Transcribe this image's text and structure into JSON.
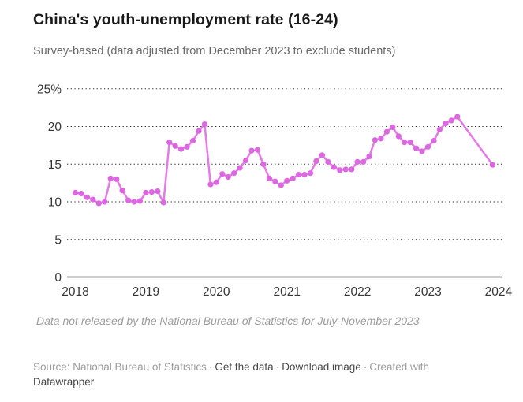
{
  "header": {
    "title": "China's youth-unemployment rate (16-24)",
    "subtitle": "Survey-based (data adjusted from December 2023 to exclude students)"
  },
  "chart_data": {
    "type": "line",
    "title": "China's youth-unemployment rate (16-24)",
    "subtitle": "Survey-based (data adjusted from December 2023 to exclude students)",
    "unit": "percent",
    "x_tick_years": [
      "2018",
      "2019",
      "2020",
      "2021",
      "2022",
      "2023",
      "2024"
    ],
    "y_ticks": [
      0,
      5,
      10,
      15,
      20,
      25
    ],
    "y_top_tick_label": "25%",
    "ylim": [
      0,
      25
    ],
    "grid": "dotted-horizontal",
    "legend": "none",
    "line_color": "#e57ae6",
    "marker_color": "#dd66e2",
    "series": [
      {
        "name": "Youth unemployment rate, ages 16-24 (%)",
        "monthly_values": {
          "2018": [
            11.2,
            11.1,
            10.6,
            10.3,
            9.8,
            10.0,
            13.1,
            13.0,
            11.5,
            10.2,
            10.0,
            10.1
          ],
          "2019": [
            11.2,
            11.3,
            11.4,
            9.9,
            17.9,
            17.4,
            17.0,
            17.3,
            18.1,
            19.4,
            20.3,
            12.3
          ],
          "2020": [
            12.6,
            13.7,
            13.3,
            13.8,
            14.5,
            15.5,
            16.8,
            16.9,
            15.0,
            13.1,
            12.7,
            12.2
          ],
          "2021": [
            12.8,
            13.1,
            13.6,
            13.6,
            13.8,
            15.4,
            16.2,
            15.3,
            14.6,
            14.2,
            14.3,
            14.3
          ],
          "2022": [
            15.3,
            15.3,
            16.0,
            18.2,
            18.4,
            19.3,
            19.9,
            18.7,
            17.9,
            17.9,
            17.1,
            16.7
          ],
          "2023": [
            17.3,
            18.1,
            19.6,
            20.4,
            20.8,
            21.3,
            null,
            null,
            null,
            null,
            null,
            14.9
          ]
        }
      }
    ],
    "data_gap": "July-November 2023 not released"
  },
  "footnote": "Data not released by the National Bureau of Statistics for July-November 2023",
  "source": {
    "label": "Source: National Bureau of Statistics",
    "separator": "·",
    "link_get_data": "Get the data",
    "link_download_image": "Download image",
    "created_with": "Created with",
    "brand": "Datawrapper"
  }
}
